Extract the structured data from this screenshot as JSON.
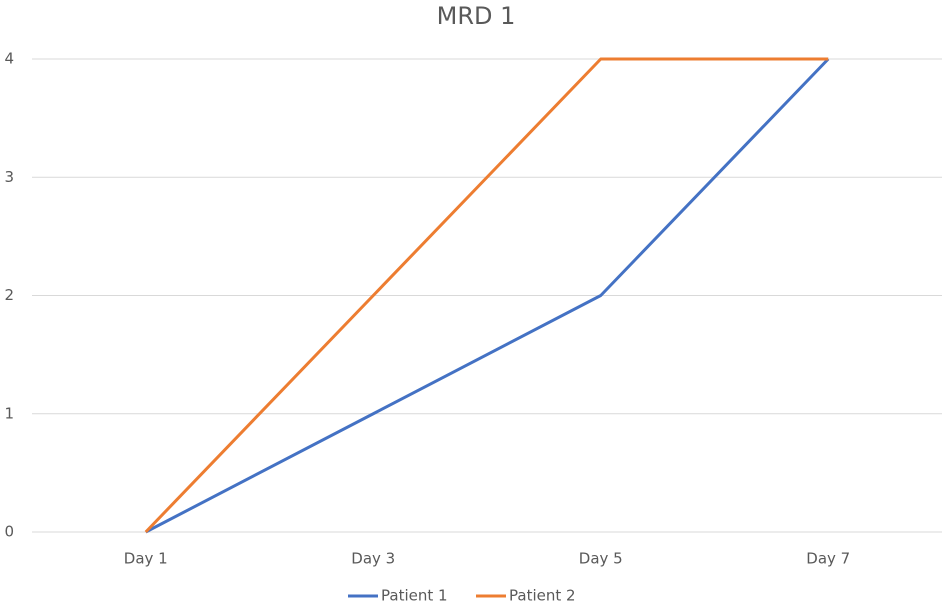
{
  "chart_data": {
    "type": "line",
    "title": "MRD 1",
    "categories": [
      "Day 1",
      "Day 3",
      "Day 5",
      "Day 7"
    ],
    "series": [
      {
        "name": "Patient 1",
        "color": "#4472c4",
        "values": [
          0,
          1,
          2,
          4
        ]
      },
      {
        "name": "Patient 2",
        "color": "#ed7d31",
        "values": [
          0,
          2,
          4,
          4
        ]
      }
    ],
    "ylim": [
      0,
      4
    ],
    "yticks": [
      0,
      1,
      2,
      3,
      4
    ],
    "grid": true,
    "legend": "bottom"
  }
}
